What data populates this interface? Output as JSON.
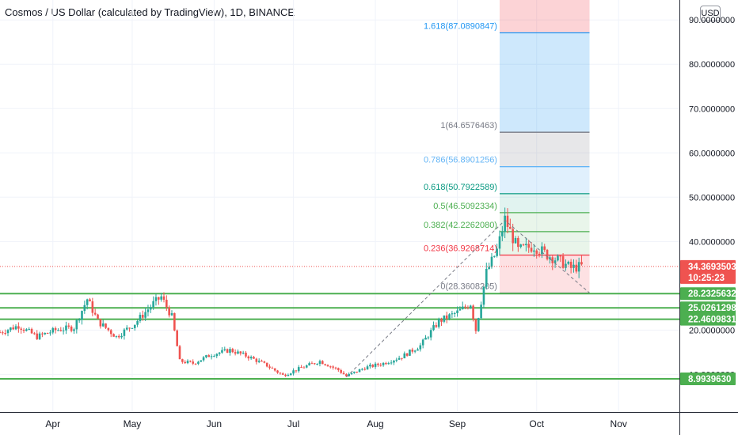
{
  "header": {
    "title": "Cosmos / US Dollar (calculated by TradingView), 1D, BINANCE",
    "currency_button": "USD"
  },
  "colors": {
    "up": "#26a69a",
    "down": "#ef5350",
    "level_line": "#4caf50",
    "grid": "#f0f3fa",
    "axis_text": "#131722",
    "current_price_bg": "#ef5350"
  },
  "chart_data": {
    "type": "candlestick",
    "symbol": "ATOMUSD",
    "interval": "1D",
    "exchange": "BINANCE",
    "y_axis": {
      "range": [
        1.5,
        94.5
      ],
      "ticks": [
        "90.0000000",
        "80.0000000",
        "70.0000000",
        "60.0000000",
        "50.0000000",
        "40.0000000",
        "20.0000000",
        "10.0000000"
      ],
      "tick_values": [
        90,
        80,
        70,
        60,
        50,
        40,
        20,
        10
      ]
    },
    "x_axis": {
      "months": [
        "Apr",
        "May",
        "Jun",
        "Jul",
        "Aug",
        "Sep",
        "Oct",
        "Nov"
      ],
      "month_start_dates": [
        "2021-04-01",
        "2021-05-01",
        "2021-06-01",
        "2021-07-01",
        "2021-08-01",
        "2021-09-01",
        "2021-10-01",
        "2021-11-01"
      ],
      "range": [
        "2021-03-12",
        "2021-11-24"
      ]
    },
    "closes": [
      {
        "date": "2021-03-12",
        "close": 19.5
      },
      {
        "date": "2021-03-19",
        "close": 21.0
      },
      {
        "date": "2021-03-26",
        "close": 18.5
      },
      {
        "date": "2021-04-02",
        "close": 20.0
      },
      {
        "date": "2021-04-09",
        "close": 20.6
      },
      {
        "date": "2021-04-14",
        "close": 27.0
      },
      {
        "date": "2021-04-18",
        "close": 22.0
      },
      {
        "date": "2021-04-25",
        "close": 18.5
      },
      {
        "date": "2021-05-02",
        "close": 21.5
      },
      {
        "date": "2021-05-09",
        "close": 26.0
      },
      {
        "date": "2021-05-12",
        "close": 27.5
      },
      {
        "date": "2021-05-16",
        "close": 23.0
      },
      {
        "date": "2021-05-19",
        "close": 13.0
      },
      {
        "date": "2021-05-24",
        "close": 12.5
      },
      {
        "date": "2021-05-31",
        "close": 14.5
      },
      {
        "date": "2021-06-07",
        "close": 15.5
      },
      {
        "date": "2021-06-14",
        "close": 14.0
      },
      {
        "date": "2021-06-21",
        "close": 12.0
      },
      {
        "date": "2021-06-27",
        "close": 9.8
      },
      {
        "date": "2021-07-04",
        "close": 11.5
      },
      {
        "date": "2021-07-11",
        "close": 13.0
      },
      {
        "date": "2021-07-18",
        "close": 11.0
      },
      {
        "date": "2021-07-21",
        "close": 9.6
      },
      {
        "date": "2021-07-28",
        "close": 11.5
      },
      {
        "date": "2021-08-04",
        "close": 12.5
      },
      {
        "date": "2021-08-11",
        "close": 14.0
      },
      {
        "date": "2021-08-18",
        "close": 16.5
      },
      {
        "date": "2021-08-25",
        "close": 22.0
      },
      {
        "date": "2021-09-01",
        "close": 24.0
      },
      {
        "date": "2021-09-06",
        "close": 26.0
      },
      {
        "date": "2021-09-08",
        "close": 20.0
      },
      {
        "date": "2021-09-12",
        "close": 33.0
      },
      {
        "date": "2021-09-16",
        "close": 38.0
      },
      {
        "date": "2021-09-19",
        "close": 45.0
      },
      {
        "date": "2021-09-24",
        "close": 38.0
      },
      {
        "date": "2021-09-30",
        "close": 39.0
      },
      {
        "date": "2021-10-05",
        "close": 37.0
      },
      {
        "date": "2021-10-10",
        "close": 35.5
      },
      {
        "date": "2021-10-14",
        "close": 34.0
      },
      {
        "date": "2021-10-18",
        "close": 34.4
      }
    ],
    "fibonacci": {
      "levels": [
        {
          "ratio": "1.618",
          "value": "87.0890847",
          "label": "1.618(87.0890847)",
          "color": "#2196f3",
          "fill": "rgba(33,150,243,0.22)"
        },
        {
          "ratio": "1",
          "value": "64.6576463",
          "label": "1(64.6576463)",
          "color": "#787b86",
          "fill": "rgba(120,123,134,0.18)"
        },
        {
          "ratio": "0.786",
          "value": "56.8901256",
          "label": "0.786(56.8901256)",
          "color": "#64b5f6",
          "fill": "rgba(100,181,246,0.20)"
        },
        {
          "ratio": "0.618",
          "value": "50.7922589",
          "label": "0.618(50.7922589)",
          "color": "#089981",
          "fill": "rgba(8,153,129,0.12)"
        },
        {
          "ratio": "0.5",
          "value": "46.5092334",
          "label": "0.5(46.5092334)",
          "color": "#4caf50",
          "fill": "rgba(76,175,80,0.12)"
        },
        {
          "ratio": "0.382",
          "value": "42.2262080",
          "label": "0.382(42.2262080)",
          "color": "#4caf50",
          "fill": "rgba(76,175,80,0.12)"
        },
        {
          "ratio": "0.236",
          "value": "36.9268714",
          "label": "0.236(36.9268714)",
          "color": "#f23645",
          "fill": "rgba(242,54,69,0.15)"
        },
        {
          "ratio": "0",
          "value": "28.3608205",
          "label": "0(28.3608205)",
          "color": "#787b86",
          "fill": "rgba(242,54,69,0.15)"
        }
      ],
      "extension_fill_above": "rgba(242,54,69,0.22)",
      "start_date": "2021-09-17",
      "end_date": "2021-10-21",
      "trend_line": [
        {
          "date": "2021-07-21",
          "value": 9.4
        },
        {
          "date": "2021-09-19",
          "value": 44.8
        },
        {
          "date": "2021-10-21",
          "value": 28.4
        }
      ]
    },
    "horizontal_levels": [
      {
        "value": "28.2325632",
        "price": 28.2325632
      },
      {
        "value": "25.0261298",
        "price": 25.0261298
      },
      {
        "value": "22.4609831",
        "price": 22.4609831
      },
      {
        "value": "8.9939630",
        "price": 8.993963
      }
    ],
    "current_price": {
      "value": "34.3693503",
      "price": 34.3693503,
      "countdown": "10:25:23"
    }
  }
}
